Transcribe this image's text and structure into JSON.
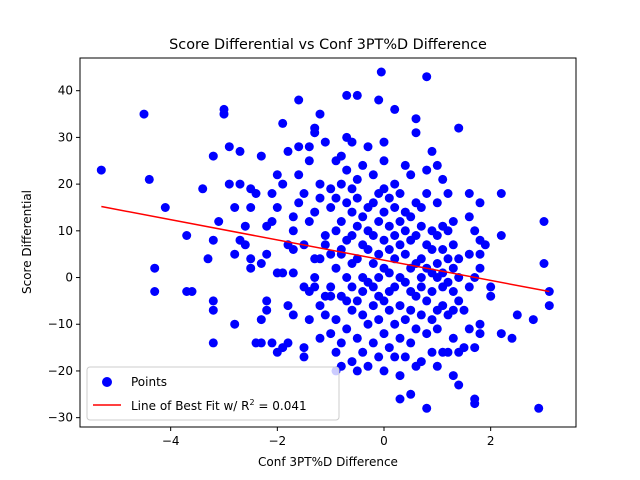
{
  "chart_data": {
    "type": "scatter",
    "title": "Score Differential vs Conf 3PT%D Difference",
    "xlabel": "Conf 3PT%D Difference",
    "ylabel": "Score Differential",
    "xlim": [
      -5.7,
      3.6
    ],
    "ylim": [
      -32,
      47
    ],
    "xticks": [
      -4,
      -2,
      0,
      2
    ],
    "yticks": [
      -30,
      -20,
      -10,
      0,
      10,
      20,
      30,
      40
    ],
    "grid": false,
    "legend": {
      "position": "lower-left",
      "entries": [
        {
          "label": "Points",
          "marker": "circle",
          "color": "#0000ff"
        },
        {
          "label": "Line of Best Fit w/ R",
          "superscript": "2",
          "suffix": " = 0.041",
          "marker": "line",
          "color": "#ff0000"
        }
      ]
    },
    "series": [
      {
        "kind": "points",
        "color": "#0000ff",
        "points": [
          [
            -5.3,
            23
          ],
          [
            -4.5,
            35
          ],
          [
            -4.4,
            21
          ],
          [
            -4.3,
            2
          ],
          [
            -4.3,
            -3
          ],
          [
            -4.1,
            15
          ],
          [
            -3.7,
            9
          ],
          [
            -3.7,
            -3
          ],
          [
            -3.6,
            -3
          ],
          [
            -3.4,
            19
          ],
          [
            -3.3,
            4
          ],
          [
            -3.2,
            26
          ],
          [
            -3.2,
            8
          ],
          [
            -3.2,
            -5
          ],
          [
            -3.2,
            -7
          ],
          [
            -3.2,
            -14
          ],
          [
            -3.1,
            12
          ],
          [
            -3.0,
            35
          ],
          [
            -3.0,
            36
          ],
          [
            -2.9,
            28
          ],
          [
            -2.9,
            20
          ],
          [
            -2.8,
            5
          ],
          [
            -2.8,
            15
          ],
          [
            -2.8,
            -10
          ],
          [
            -2.7,
            8
          ],
          [
            -2.7,
            20
          ],
          [
            -2.7,
            27
          ],
          [
            -2.6,
            11
          ],
          [
            -2.6,
            7
          ],
          [
            -2.5,
            19
          ],
          [
            -2.5,
            15
          ],
          [
            -2.5,
            4
          ],
          [
            -2.5,
            2
          ],
          [
            -2.4,
            -14
          ],
          [
            -2.4,
            18
          ],
          [
            -2.3,
            -14
          ],
          [
            -2.3,
            -9
          ],
          [
            -2.3,
            26
          ],
          [
            -2.3,
            3
          ],
          [
            -2.2,
            -7
          ],
          [
            -2.2,
            -5
          ],
          [
            -2.2,
            11
          ],
          [
            -2.2,
            5
          ],
          [
            -2.1,
            -14
          ],
          [
            -2.1,
            12
          ],
          [
            -2.1,
            18
          ],
          [
            -2.0,
            -16
          ],
          [
            -2.0,
            22
          ],
          [
            -2.0,
            1
          ],
          [
            -2.0,
            15
          ],
          [
            -1.9,
            -15
          ],
          [
            -1.9,
            1
          ],
          [
            -1.9,
            33
          ],
          [
            -1.9,
            20
          ],
          [
            -1.8,
            -14
          ],
          [
            -1.8,
            7
          ],
          [
            -1.8,
            -6
          ],
          [
            -1.8,
            27
          ],
          [
            -1.7,
            6
          ],
          [
            -1.7,
            -8
          ],
          [
            -1.7,
            1
          ],
          [
            -1.7,
            13
          ],
          [
            -1.7,
            10
          ],
          [
            -1.6,
            28
          ],
          [
            -1.6,
            38
          ],
          [
            -1.6,
            22
          ],
          [
            -1.6,
            16
          ],
          [
            -1.5,
            -17
          ],
          [
            -1.5,
            -15
          ],
          [
            -1.5,
            -2
          ],
          [
            -1.5,
            7
          ],
          [
            -1.5,
            18
          ],
          [
            -1.4,
            -3
          ],
          [
            -1.4,
            -9
          ],
          [
            -1.4,
            25
          ],
          [
            -1.4,
            12
          ],
          [
            -1.4,
            28
          ],
          [
            -1.3,
            -2
          ],
          [
            -1.3,
            4
          ],
          [
            -1.3,
            31
          ],
          [
            -1.3,
            32
          ],
          [
            -1.3,
            14
          ],
          [
            -1.3,
            0
          ],
          [
            -1.2,
            -13
          ],
          [
            -1.2,
            -6
          ],
          [
            -1.2,
            4
          ],
          [
            -1.2,
            17
          ],
          [
            -1.2,
            20
          ],
          [
            -1.2,
            35
          ],
          [
            -1.1,
            -4
          ],
          [
            -1.1,
            -8
          ],
          [
            -1.1,
            9
          ],
          [
            -1.1,
            29
          ],
          [
            -1.1,
            7
          ],
          [
            -1.0,
            -2
          ],
          [
            -1.0,
            -12
          ],
          [
            -1.0,
            5
          ],
          [
            -1.0,
            15
          ],
          [
            -1.0,
            19
          ],
          [
            -1.0,
            -4
          ],
          [
            -0.9,
            -20
          ],
          [
            -0.9,
            -16
          ],
          [
            -0.9,
            -9
          ],
          [
            -0.9,
            2
          ],
          [
            -0.9,
            10
          ],
          [
            -0.9,
            25
          ],
          [
            -0.9,
            17
          ],
          [
            -0.8,
            -19
          ],
          [
            -0.8,
            -14
          ],
          [
            -0.8,
            -4
          ],
          [
            -0.8,
            5
          ],
          [
            -0.8,
            12
          ],
          [
            -0.8,
            20
          ],
          [
            -0.8,
            26
          ],
          [
            -0.8,
            6
          ],
          [
            -0.7,
            -11
          ],
          [
            -0.7,
            -5
          ],
          [
            -0.7,
            0
          ],
          [
            -0.7,
            8
          ],
          [
            -0.7,
            16
          ],
          [
            -0.7,
            23
          ],
          [
            -0.7,
            30
          ],
          [
            -0.7,
            39
          ],
          [
            -0.6,
            -18
          ],
          [
            -0.6,
            -7
          ],
          [
            -0.6,
            3
          ],
          [
            -0.6,
            9
          ],
          [
            -0.6,
            14
          ],
          [
            -0.6,
            19
          ],
          [
            -0.6,
            29
          ],
          [
            -0.6,
            -2
          ],
          [
            -0.5,
            -20
          ],
          [
            -0.5,
            -13
          ],
          [
            -0.5,
            -5
          ],
          [
            -0.5,
            4
          ],
          [
            -0.5,
            11
          ],
          [
            -0.5,
            17
          ],
          [
            -0.5,
            21
          ],
          [
            -0.5,
            39
          ],
          [
            -0.4,
            -16
          ],
          [
            -0.4,
            -8
          ],
          [
            -0.4,
            0
          ],
          [
            -0.4,
            7
          ],
          [
            -0.4,
            13
          ],
          [
            -0.4,
            24
          ],
          [
            -0.4,
            -3
          ],
          [
            -0.3,
            -19
          ],
          [
            -0.3,
            -10
          ],
          [
            -0.3,
            -1
          ],
          [
            -0.3,
            6
          ],
          [
            -0.3,
            15
          ],
          [
            -0.3,
            28
          ],
          [
            -0.3,
            10
          ],
          [
            -0.2,
            -14
          ],
          [
            -0.2,
            -6
          ],
          [
            -0.2,
            3
          ],
          [
            -0.2,
            9
          ],
          [
            -0.2,
            16
          ],
          [
            -0.2,
            22
          ],
          [
            -0.2,
            -2
          ],
          [
            -0.1,
            -17
          ],
          [
            -0.1,
            -9
          ],
          [
            -0.1,
            0
          ],
          [
            -0.1,
            5
          ],
          [
            -0.1,
            12
          ],
          [
            -0.1,
            18
          ],
          [
            -0.1,
            38
          ],
          [
            -0.1,
            -4
          ],
          [
            -0.05,
            44
          ],
          [
            0.0,
            -20
          ],
          [
            0.0,
            -12
          ],
          [
            0.0,
            -5
          ],
          [
            0.0,
            2
          ],
          [
            0.0,
            8
          ],
          [
            0.0,
            14
          ],
          [
            0.0,
            19
          ],
          [
            0.0,
            25
          ],
          [
            0.0,
            29
          ],
          [
            0.1,
            -15
          ],
          [
            0.1,
            -7
          ],
          [
            0.1,
            1
          ],
          [
            0.1,
            6
          ],
          [
            0.1,
            11
          ],
          [
            0.1,
            17
          ],
          [
            0.1,
            -3
          ],
          [
            0.2,
            -17
          ],
          [
            0.2,
            -10
          ],
          [
            0.2,
            -2
          ],
          [
            0.2,
            4
          ],
          [
            0.2,
            9
          ],
          [
            0.2,
            15
          ],
          [
            0.2,
            20
          ],
          [
            0.2,
            36
          ],
          [
            0.3,
            -21
          ],
          [
            0.3,
            -13
          ],
          [
            0.3,
            -6
          ],
          [
            0.3,
            0
          ],
          [
            0.3,
            7
          ],
          [
            0.3,
            12
          ],
          [
            0.3,
            18
          ],
          [
            0.3,
            -26
          ],
          [
            0.4,
            -17
          ],
          [
            0.4,
            -9
          ],
          [
            0.4,
            -1
          ],
          [
            0.4,
            5
          ],
          [
            0.4,
            10
          ],
          [
            0.4,
            24
          ],
          [
            0.4,
            14
          ],
          [
            0.5,
            -25
          ],
          [
            0.5,
            -14
          ],
          [
            0.5,
            -7
          ],
          [
            0.5,
            2
          ],
          [
            0.5,
            8
          ],
          [
            0.5,
            13
          ],
          [
            0.5,
            22
          ],
          [
            0.5,
            -3
          ],
          [
            0.6,
            -19
          ],
          [
            0.6,
            -11
          ],
          [
            0.6,
            -4
          ],
          [
            0.6,
            3
          ],
          [
            0.6,
            9
          ],
          [
            0.6,
            16
          ],
          [
            0.6,
            31
          ],
          [
            0.6,
            34
          ],
          [
            0.7,
            -18
          ],
          [
            0.7,
            -8
          ],
          [
            0.7,
            0
          ],
          [
            0.7,
            4
          ],
          [
            0.7,
            11
          ],
          [
            0.7,
            15
          ],
          [
            0.7,
            -2
          ],
          [
            0.8,
            -28
          ],
          [
            0.8,
            -12
          ],
          [
            0.8,
            -5
          ],
          [
            0.8,
            2
          ],
          [
            0.8,
            7
          ],
          [
            0.8,
            18
          ],
          [
            0.8,
            23
          ],
          [
            0.8,
            43
          ],
          [
            0.9,
            -16
          ],
          [
            0.9,
            -9
          ],
          [
            0.9,
            1
          ],
          [
            0.9,
            6
          ],
          [
            0.9,
            10
          ],
          [
            0.9,
            27
          ],
          [
            0.9,
            -3
          ],
          [
            1.0,
            -19
          ],
          [
            1.0,
            -7
          ],
          [
            1.0,
            0
          ],
          [
            1.0,
            3
          ],
          [
            1.0,
            9
          ],
          [
            1.0,
            16
          ],
          [
            1.0,
            24
          ],
          [
            1.0,
            -11
          ],
          [
            1.1,
            -16
          ],
          [
            1.1,
            -6
          ],
          [
            1.1,
            1
          ],
          [
            1.1,
            6
          ],
          [
            1.1,
            11
          ],
          [
            1.1,
            21
          ],
          [
            1.1,
            -2
          ],
          [
            1.2,
            -8
          ],
          [
            1.2,
            -1
          ],
          [
            1.2,
            4
          ],
          [
            1.2,
            10
          ],
          [
            1.2,
            18
          ],
          [
            1.2,
            -16
          ],
          [
            1.3,
            -21
          ],
          [
            1.3,
            -7
          ],
          [
            1.3,
            -3
          ],
          [
            1.3,
            2
          ],
          [
            1.3,
            7
          ],
          [
            1.3,
            12
          ],
          [
            1.3,
            -13
          ],
          [
            1.4,
            -23
          ],
          [
            1.4,
            -16
          ],
          [
            1.4,
            -5
          ],
          [
            1.4,
            0
          ],
          [
            1.4,
            4
          ],
          [
            1.4,
            32
          ],
          [
            1.5,
            -15
          ],
          [
            1.5,
            -7
          ],
          [
            1.6,
            -11
          ],
          [
            1.6,
            -2
          ],
          [
            1.6,
            5
          ],
          [
            1.6,
            13
          ],
          [
            1.6,
            18
          ],
          [
            1.7,
            -26
          ],
          [
            1.7,
            -27
          ],
          [
            1.7,
            -15
          ],
          [
            1.7,
            0
          ],
          [
            1.7,
            10
          ],
          [
            1.8,
            -10
          ],
          [
            1.8,
            -12
          ],
          [
            1.8,
            2
          ],
          [
            1.8,
            5
          ],
          [
            1.8,
            8
          ],
          [
            1.8,
            16
          ],
          [
            1.9,
            7
          ],
          [
            2.0,
            -2
          ],
          [
            2.0,
            -4
          ],
          [
            2.2,
            -12
          ],
          [
            2.2,
            9
          ],
          [
            2.2,
            18
          ],
          [
            2.4,
            -13
          ],
          [
            2.5,
            -8
          ],
          [
            2.8,
            -9
          ],
          [
            2.9,
            -28
          ],
          [
            3.0,
            3
          ],
          [
            3.0,
            12
          ],
          [
            3.1,
            -3
          ],
          [
            3.1,
            -6
          ]
        ]
      },
      {
        "kind": "fit-line",
        "color": "#ff0000",
        "x": [
          -5.3,
          3.1
        ],
        "y": [
          15.2,
          -3.0
        ]
      }
    ]
  }
}
